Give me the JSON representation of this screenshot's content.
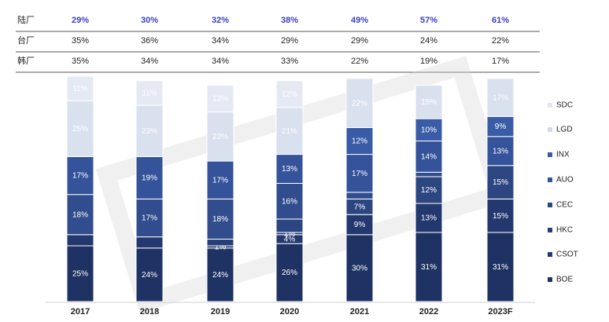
{
  "chart_data": {
    "type": "bar",
    "stacked": true,
    "categories": [
      "2017",
      "2018",
      "2019",
      "2020",
      "2021",
      "2022",
      "2023F"
    ],
    "series": [
      {
        "name": "BOE",
        "color": "#1f3264",
        "values": [
          25,
          24,
          24,
          26,
          30,
          31,
          31
        ],
        "labels": [
          "25%",
          "24%",
          "24%",
          "26%",
          "30%",
          "31%",
          "31%"
        ]
      },
      {
        "name": "CSOT",
        "color": "#22386e",
        "values": [
          5,
          5,
          1,
          4,
          9,
          13,
          15
        ],
        "labels": [
          "",
          "",
          "1%",
          "4%",
          "9%",
          "13%",
          "15%"
        ]
      },
      {
        "name": "HKC",
        "color": "#273f78",
        "values": [
          0,
          0,
          3,
          1,
          0,
          0,
          0
        ],
        "labels": [
          "",
          "",
          "",
          "1%",
          "",
          "",
          ""
        ]
      },
      {
        "name": "CEC",
        "color": "#2c4682",
        "values": [
          0,
          0,
          0,
          6,
          7,
          12,
          15
        ],
        "labels": [
          "",
          "",
          "",
          "",
          "7%",
          "12%",
          "15%"
        ]
      },
      {
        "name": "AUO",
        "color": "#314d8e",
        "values": [
          18,
          17,
          18,
          16,
          3,
          2,
          0
        ],
        "labels": [
          "18%",
          "17%",
          "18%",
          "16%",
          "",
          "",
          ""
        ]
      },
      {
        "name": "INX",
        "color": "#34539a",
        "values": [
          17,
          19,
          17,
          13,
          17,
          14,
          13
        ],
        "labels": [
          "17%",
          "19%",
          "17%",
          "13%",
          "17%",
          "14%",
          "13%"
        ]
      },
      {
        "name": "LGD",
        "color": "#3a5ca7",
        "values": [
          0,
          0,
          0,
          0,
          12,
          10,
          9
        ],
        "labels": [
          "",
          "",
          "",
          "",
          "12%",
          "10%",
          "9%"
        ]
      },
      {
        "name": "SDC",
        "color": "#d9e0ee",
        "values": [
          25,
          23,
          22,
          21,
          22,
          15,
          17
        ],
        "labels": [
          "25%",
          "23%",
          "22%",
          "21%",
          "22%",
          "15%",
          "17%"
        ]
      },
      {
        "name": "",
        "color": "#e4e9f3",
        "values": [
          11,
          11,
          12,
          12,
          0,
          0,
          0
        ],
        "labels": [
          "11%",
          "11%",
          "12%",
          "12%",
          "",
          "",
          ""
        ]
      }
    ],
    "legend": [
      "SDC",
      "LGD",
      "INX",
      "AUO",
      "CEC",
      "HKC",
      "CSOT",
      "BOE"
    ],
    "legend_colors": [
      "#e1e6f1",
      "#d2dbec",
      "#3a5ca7",
      "#34539a",
      "#2c4682",
      "#273f78",
      "#22386e",
      "#1f3264"
    ],
    "legend_position": "right",
    "ylim": [
      0,
      100
    ]
  },
  "table": {
    "rows": [
      {
        "label": "陆厂",
        "highlight": true,
        "values": [
          "29%",
          "30%",
          "32%",
          "38%",
          "49%",
          "57%",
          "61%"
        ]
      },
      {
        "label": "台厂",
        "highlight": false,
        "values": [
          "35%",
          "36%",
          "34%",
          "29%",
          "29%",
          "24%",
          "22%"
        ]
      },
      {
        "label": "韩厂",
        "highlight": false,
        "values": [
          "35%",
          "34%",
          "34%",
          "33%",
          "22%",
          "19%",
          "17%"
        ]
      }
    ],
    "highlight_color": "#3b3fc4"
  }
}
